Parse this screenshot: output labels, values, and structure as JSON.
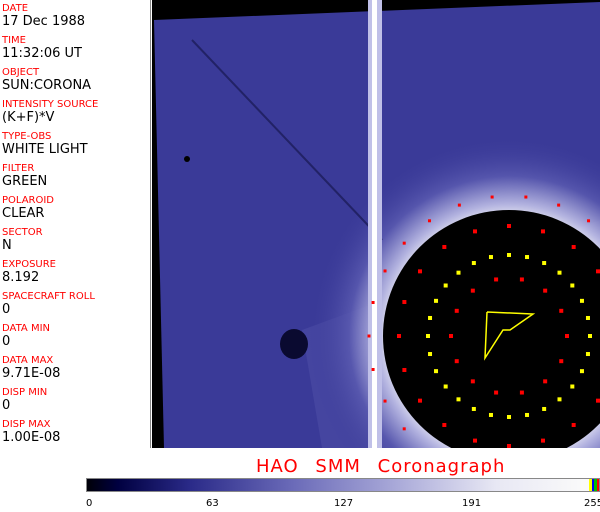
{
  "metadata": [
    {
      "label": "DATE",
      "value": "17 Dec 1988"
    },
    {
      "label": "TIME",
      "value": "11:32:06 UT"
    },
    {
      "label": "OBJECT",
      "value": "SUN:CORONA"
    },
    {
      "label": "INTENSITY SOURCE",
      "value": "(K+F)*V"
    },
    {
      "label": "TYPE-OBS",
      "value": "WHITE LIGHT"
    },
    {
      "label": "FILTER",
      "value": "GREEN"
    },
    {
      "label": "POLAROID",
      "value": "CLEAR"
    },
    {
      "label": "SECTOR",
      "value": "N"
    },
    {
      "label": "EXPOSURE",
      "value": "8.192"
    },
    {
      "label": "SPACECRAFT ROLL",
      "value": "0"
    },
    {
      "label": "DATA MIN",
      "value": "0"
    },
    {
      "label": "DATA MAX",
      "value": "9.71E-08"
    },
    {
      "label": "DISP MIN",
      "value": "0"
    },
    {
      "label": "DISP MAX",
      "value": "1.00E-08"
    }
  ],
  "title": "HAO   SMM Coronagraph",
  "colorbar": {
    "ticks": [
      "0",
      "63",
      "127",
      "191",
      "255"
    ],
    "marker_colors": [
      "#ffff00",
      "#0000ff",
      "#00c000",
      "#ff0000"
    ]
  },
  "colors": {
    "label": "#ff0000",
    "corona": "#3a3a98",
    "marker_red": "#ff0000",
    "marker_yellow": "#ffff00"
  }
}
